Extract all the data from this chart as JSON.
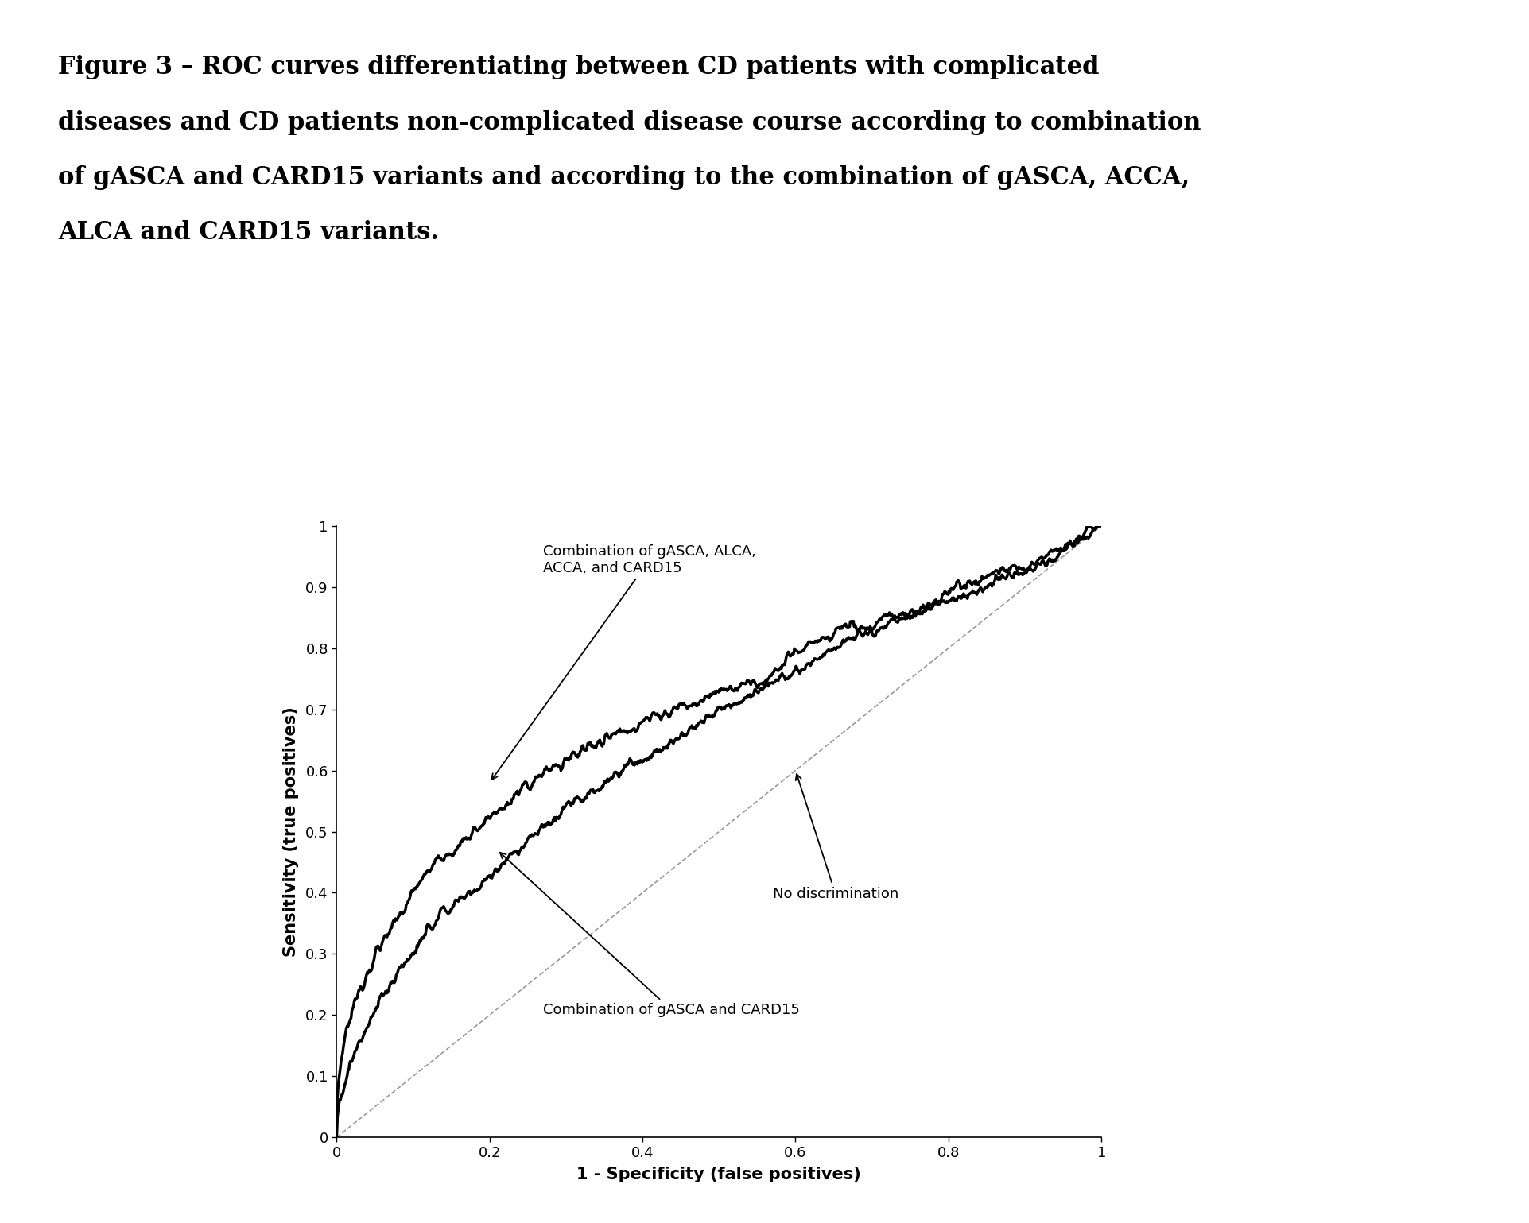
{
  "title_lines": [
    "Figure 3 – ROC curves differentiating between CD patients with complicated",
    "diseases and CD patients non-complicated disease course according to combination",
    "of gASCA and CARD15 variants and according to the combination of gASCA, ACCA,",
    "ALCA and CARD15 variants."
  ],
  "xlabel": "1 - Specificity (false positives)",
  "ylabel": "Sensitivity (true positives)",
  "label_combo4": "Combination of gASCA, ALCA,\nACCA, and CARD15",
  "label_combo2": "Combination of gASCA and CARD15",
  "label_nodisc": "No discrimination",
  "curve1_color": "#000000",
  "curve2_color": "#000000",
  "diag_color": "#999999",
  "background_color": "#ffffff",
  "title_fontsize": 22,
  "axis_label_fontsize": 15,
  "tick_fontsize": 13,
  "annotation_fontsize": 13
}
